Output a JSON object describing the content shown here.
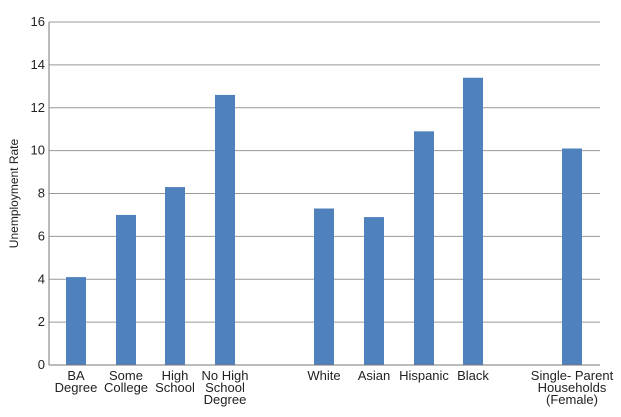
{
  "chart_data": {
    "type": "bar",
    "ylabel": "Unemployment Rate",
    "xlabel": "",
    "ylim": [
      0,
      16
    ],
    "yticks": [
      0,
      2,
      4,
      6,
      8,
      10,
      12,
      14,
      16
    ],
    "grid": true,
    "bar_color": "#4f81bd",
    "categories": [
      "BA Degree",
      "Some College",
      "High School",
      "No High School Degree",
      "White",
      "Asian",
      "Hispanic",
      "Black",
      "Single- Parent Households (Female)"
    ],
    "category_lines": [
      [
        "BA",
        "Degree"
      ],
      [
        "Some",
        "College"
      ],
      [
        "High",
        "School"
      ],
      [
        "No High",
        "School",
        "Degree"
      ],
      [
        "White"
      ],
      [
        "Asian"
      ],
      [
        "Hispanic"
      ],
      [
        "Black"
      ],
      [
        "Single- Parent",
        "Households",
        "(Female)"
      ]
    ],
    "values": [
      4.1,
      7.0,
      8.3,
      12.6,
      7.3,
      6.9,
      10.9,
      13.4,
      10.1
    ]
  }
}
